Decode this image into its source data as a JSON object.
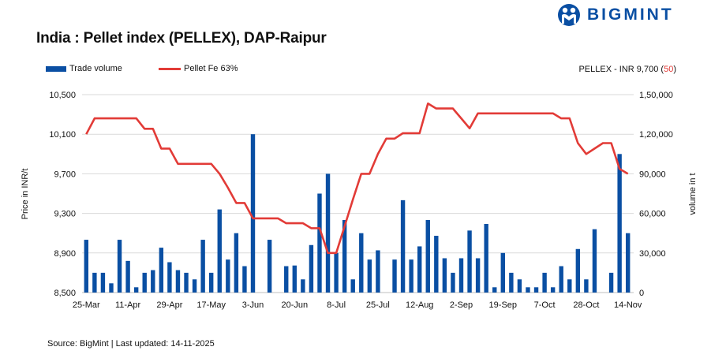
{
  "header": {
    "title": "India : Pellet index (PELLEX), DAP-Raipur",
    "logo_text": "BIGMINT"
  },
  "summary": {
    "label": "PELLEX - INR 9,700",
    "change_open": " (",
    "change": "50",
    "change_close": ")"
  },
  "source": "Source: BigMint | Last updated: 14-11-2025",
  "colors": {
    "bar": "#0a4fa3",
    "line": "#e23b37",
    "grid": "#d9d9d9"
  },
  "chart_data": {
    "type": "bar+line",
    "title": "India : Pellet index (PELLEX), DAP-Raipur",
    "legend_position": "top-left",
    "grid": true,
    "x_tick_labels": [
      "25-Mar",
      "11-Apr",
      "29-Apr",
      "17-May",
      "3-Jun",
      "20-Jun",
      "8-Jul",
      "25-Jul",
      "12-Aug",
      "2-Sep",
      "19-Sep",
      "7-Oct",
      "28-Oct",
      "14-Nov"
    ],
    "y_left": {
      "label": "Price in INR/t",
      "range": [
        8500,
        10500
      ],
      "ticks": [
        "8,500",
        "8,900",
        "9,300",
        "9,700",
        "10,100",
        "10,500"
      ]
    },
    "y_right": {
      "label": "volume in t",
      "range": [
        0,
        150000
      ],
      "ticks": [
        "0",
        "30,000",
        "60,000",
        "90,000",
        "1,20,000",
        "1,50,000"
      ]
    },
    "series": [
      {
        "name": "Trade volume",
        "type": "bar",
        "axis": "right",
        "values": [
          40000,
          15000,
          15000,
          7000,
          40000,
          24000,
          4000,
          15000,
          17000,
          34000,
          23000,
          17000,
          15000,
          10000,
          40000,
          15000,
          63000,
          25000,
          45000,
          20000,
          120000,
          0,
          40000,
          0,
          20000,
          20500,
          10000,
          36000,
          75000,
          90000,
          30000,
          55000,
          10000,
          45000,
          25000,
          32000,
          0,
          25000,
          70000,
          25000,
          35000,
          55000,
          43000,
          26000,
          15000,
          26000,
          47000,
          26000,
          52000,
          4000,
          30000,
          15000,
          10000,
          4000,
          4000,
          15000,
          4000,
          20000,
          10000,
          33000,
          10000,
          48000,
          0,
          15000,
          105000,
          45000
        ]
      },
      {
        "name": "Pellet Fe 63%",
        "type": "line",
        "axis": "left",
        "values": [
          10100,
          10260,
          10260,
          10260,
          10260,
          10260,
          10260,
          10155,
          10155,
          9955,
          9955,
          9800,
          9800,
          9800,
          9800,
          9800,
          9700,
          9560,
          9405,
          9405,
          9250,
          9250,
          9250,
          9250,
          9200,
          9200,
          9200,
          9150,
          9150,
          8900,
          8900,
          9170,
          9440,
          9700,
          9700,
          9900,
          10055,
          10055,
          10110,
          10110,
          10110,
          10410,
          10360,
          10360,
          10360,
          10260,
          10160,
          10310,
          10310,
          10310,
          10310,
          10310,
          10310,
          10310,
          10310,
          10310,
          10310,
          10260,
          10260,
          10010,
          9900,
          9955,
          10010,
          10010,
          9750,
          9700
        ]
      }
    ]
  }
}
